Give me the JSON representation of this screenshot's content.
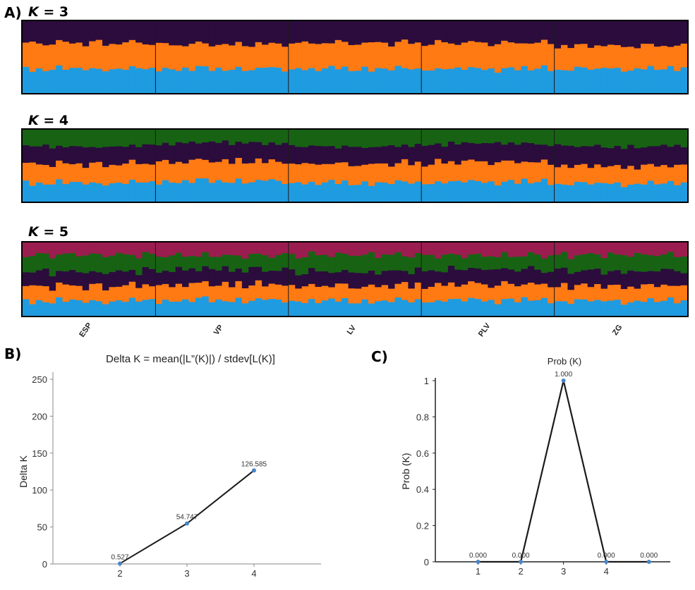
{
  "figure": {
    "panel_a_label": "A)",
    "panel_b_label": "B)",
    "panel_c_label": "C)"
  },
  "colors": {
    "c1": "#1f9be0",
    "c2": "#ff7a12",
    "c3": "#2b0c3d",
    "c4": "#176313",
    "c5": "#9b1d4f",
    "line": "#1a1a1a",
    "point": "#4a86c8"
  },
  "chart_data": [
    {
      "type": "stacked-bar",
      "title_prefix": "K",
      "title_suffix": "= 3",
      "k": 3,
      "populations": [
        "ESP",
        "VP",
        "LV",
        "PLV",
        "ZG"
      ],
      "individuals_per_population": 20,
      "cluster_colors": [
        "#1f9be0",
        "#ff7a12",
        "#2b0c3d"
      ],
      "cluster_means_by_population": [
        [
          0.34,
          0.36,
          0.3
        ],
        [
          0.34,
          0.34,
          0.32
        ],
        [
          0.34,
          0.36,
          0.3
        ],
        [
          0.34,
          0.36,
          0.3
        ],
        [
          0.34,
          0.32,
          0.34
        ]
      ]
    },
    {
      "type": "stacked-bar",
      "title_prefix": "K",
      "title_suffix": "= 4",
      "k": 4,
      "populations": [
        "ESP",
        "VP",
        "LV",
        "PLV",
        "ZG"
      ],
      "individuals_per_population": 20,
      "cluster_colors": [
        "#1f9be0",
        "#ff7a12",
        "#2b0c3d",
        "#176313"
      ],
      "cluster_means_by_population": [
        [
          0.27,
          0.27,
          0.25,
          0.21
        ],
        [
          0.28,
          0.27,
          0.25,
          0.2
        ],
        [
          0.27,
          0.27,
          0.25,
          0.21
        ],
        [
          0.27,
          0.27,
          0.25,
          0.21
        ],
        [
          0.26,
          0.25,
          0.28,
          0.21
        ]
      ]
    },
    {
      "type": "stacked-bar",
      "title_prefix": "K",
      "title_suffix": "= 5",
      "k": 5,
      "populations": [
        "ESP",
        "VP",
        "LV",
        "PLV",
        "ZG"
      ],
      "individuals_per_population": 20,
      "cluster_colors": [
        "#1f9be0",
        "#ff7a12",
        "#2b0c3d",
        "#176313",
        "#9b1d4f"
      ],
      "cluster_means_by_population": [
        [
          0.21,
          0.21,
          0.2,
          0.21,
          0.17
        ],
        [
          0.21,
          0.21,
          0.2,
          0.21,
          0.17
        ],
        [
          0.21,
          0.21,
          0.2,
          0.21,
          0.17
        ],
        [
          0.21,
          0.21,
          0.2,
          0.21,
          0.17
        ],
        [
          0.21,
          0.21,
          0.21,
          0.2,
          0.17
        ]
      ]
    },
    {
      "type": "line",
      "title": "Delta K = mean(|L”(K)|) / stdev[L(K)]",
      "xlabel": "",
      "ylabel": "Delta K",
      "x": [
        2,
        3,
        4
      ],
      "y": [
        0.527,
        54.747,
        126.585
      ],
      "data_labels": [
        "0.527",
        "54.747",
        "126.585"
      ],
      "xticks": [
        "2",
        "3",
        "4"
      ],
      "yticks": [
        "0",
        "50",
        "100",
        "150",
        "200",
        "250"
      ],
      "xlim": [
        1.0,
        5.0
      ],
      "ylim": [
        0,
        250
      ]
    },
    {
      "type": "line",
      "title": "Prob (K)",
      "xlabel": "",
      "ylabel": "Prob (K)",
      "x": [
        1,
        2,
        3,
        4,
        5
      ],
      "y": [
        0.0,
        0.0,
        1.0,
        0.0,
        0.0
      ],
      "data_labels": [
        "0.000",
        "0.000",
        "1.000",
        "0.000",
        "0.000"
      ],
      "xticks": [
        "1",
        "2",
        "3",
        "4"
      ],
      "yticks": [
        "0",
        "0.2",
        "0.4",
        "0.6",
        "0.8",
        "1"
      ],
      "xlim": [
        0.0,
        5.5
      ],
      "ylim": [
        0,
        1
      ]
    }
  ]
}
